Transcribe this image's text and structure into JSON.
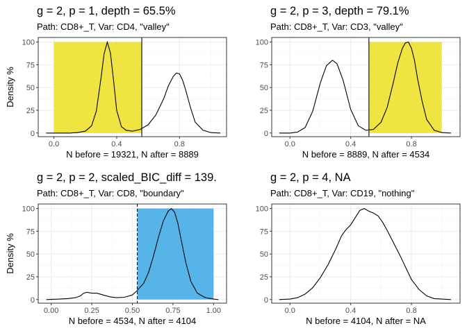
{
  "chart_data": [
    {
      "type": "line",
      "title": "g = 2, p = 1, depth = 65.5%",
      "subtitle": "Path: CD8+_T, Var: CD4, \"valley\"",
      "xlabel": "N before = 19321, N after = 8889",
      "ylabel": "Density %",
      "xlim": [
        -0.1,
        1.1
      ],
      "ylim": [
        -4,
        105
      ],
      "xticks": [
        0.0,
        0.4,
        0.8
      ],
      "xtick_labels": [
        "0.0",
        "0.4",
        "0.8"
      ],
      "yticks": [
        0,
        25,
        50,
        75,
        100
      ],
      "ytick_labels": [
        "0",
        "25",
        "50",
        "75",
        "100"
      ],
      "grid": true,
      "highlight": {
        "x0": 0.0,
        "x1": 0.56,
        "y0": 0,
        "y1": 100,
        "color": "#f0e442"
      },
      "cutoff": {
        "x": 0.56,
        "dashed": false
      },
      "series": [
        {
          "x": [
            -0.05,
            0.0,
            0.05,
            0.1,
            0.15,
            0.2,
            0.24,
            0.27,
            0.3,
            0.32,
            0.34,
            0.36,
            0.38,
            0.4,
            0.43,
            0.46,
            0.5,
            0.55,
            0.6,
            0.65,
            0.7,
            0.73,
            0.76,
            0.78,
            0.8,
            0.82,
            0.84,
            0.87,
            0.9,
            0.95,
            1.0,
            1.06
          ],
          "y": [
            0,
            0,
            0,
            0,
            0.5,
            2,
            8,
            24,
            60,
            87,
            100,
            88,
            58,
            25,
            7,
            3,
            2,
            4,
            9,
            20,
            38,
            52,
            62,
            66,
            65,
            58,
            47,
            28,
            12,
            3,
            0.5,
            0
          ]
        }
      ]
    },
    {
      "type": "line",
      "title": "g = 2, p = 3, depth = 79.1%",
      "subtitle": "Path: CD8+_T, Var: CD3, \"valley\"",
      "xlabel": "N before = 8889, N after = 4534",
      "ylabel": "",
      "xlim": [
        -0.12,
        1.12
      ],
      "ylim": [
        -4,
        105
      ],
      "xticks": [
        0.0,
        0.4,
        0.8
      ],
      "xtick_labels": [
        "0.0",
        "0.4",
        "0.8"
      ],
      "yticks": [
        0,
        25,
        50,
        75,
        100
      ],
      "ytick_labels": [
        "0",
        "25",
        "50",
        "75",
        "100"
      ],
      "grid": true,
      "highlight": {
        "x0": 0.52,
        "x1": 1.0,
        "y0": 0,
        "y1": 100,
        "color": "#f0e442"
      },
      "cutoff": {
        "x": 0.52,
        "dashed": false
      },
      "series": [
        {
          "x": [
            -0.07,
            0.0,
            0.05,
            0.1,
            0.15,
            0.2,
            0.24,
            0.28,
            0.31,
            0.35,
            0.4,
            0.45,
            0.5,
            0.55,
            0.6,
            0.64,
            0.68,
            0.71,
            0.74,
            0.76,
            0.78,
            0.8,
            0.82,
            0.84,
            0.87,
            0.9,
            0.95,
            1.0,
            1.06
          ],
          "y": [
            0,
            0,
            1,
            6,
            24,
            55,
            74,
            80,
            76,
            58,
            26,
            8,
            3,
            4,
            12,
            28,
            55,
            77,
            93,
            99,
            100,
            93,
            80,
            60,
            35,
            15,
            3,
            0.5,
            0
          ]
        }
      ]
    },
    {
      "type": "line",
      "title": "g = 2, p = 2, scaled_BIC_diff = 139.",
      "subtitle": "Path: CD8+_T, Var: CD8, \"boundary\"",
      "xlabel": "N before = 4534, N after = 4104",
      "ylabel": "Density %",
      "xlim": [
        -0.08,
        1.08
      ],
      "ylim": [
        -4,
        105
      ],
      "xticks": [
        0.0,
        0.25,
        0.5,
        0.75,
        1.0
      ],
      "xtick_labels": [
        "0.00",
        "0.25",
        "0.50",
        "0.75",
        "1.00"
      ],
      "yticks": [
        0,
        25,
        50,
        75,
        100
      ],
      "ytick_labels": [
        "0",
        "25",
        "50",
        "75",
        "100"
      ],
      "grid": true,
      "highlight": {
        "x0": 0.53,
        "x1": 1.0,
        "y0": 0,
        "y1": 100,
        "color": "#56b4e9"
      },
      "cutoff": {
        "x": 0.53,
        "dashed": true
      },
      "series": [
        {
          "x": [
            -0.03,
            0.05,
            0.1,
            0.15,
            0.18,
            0.2,
            0.22,
            0.25,
            0.28,
            0.32,
            0.36,
            0.4,
            0.45,
            0.5,
            0.53,
            0.57,
            0.6,
            0.63,
            0.66,
            0.69,
            0.72,
            0.74,
            0.76,
            0.78,
            0.8,
            0.83,
            0.86,
            0.9,
            0.95,
            1.0,
            1.03
          ],
          "y": [
            0,
            0.5,
            1,
            2,
            4,
            7,
            8,
            7,
            7,
            5,
            3,
            2,
            2.5,
            5,
            10,
            18,
            30,
            48,
            68,
            86,
            97,
            100,
            96,
            84,
            66,
            40,
            20,
            7,
            2,
            0.5,
            0
          ]
        }
      ]
    },
    {
      "type": "line",
      "title": "g = 2, p = 4, NA",
      "subtitle": "Path: CD8+_T, Var: CD19, \"nothing\"",
      "xlabel": "N before = 4104, N after = NA",
      "ylabel": "",
      "xlim": [
        -0.12,
        1.12
      ],
      "ylim": [
        -4,
        105
      ],
      "xticks": [
        0.0,
        0.4,
        0.8
      ],
      "xtick_labels": [
        "0.0",
        "0.4",
        "0.8"
      ],
      "yticks": [
        0,
        25,
        50,
        75,
        100
      ],
      "ytick_labels": [
        "0",
        "25",
        "50",
        "75",
        "100"
      ],
      "grid": true,
      "highlight": null,
      "cutoff": null,
      "series": [
        {
          "x": [
            -0.07,
            0.0,
            0.05,
            0.1,
            0.15,
            0.2,
            0.25,
            0.3,
            0.34,
            0.37,
            0.4,
            0.43,
            0.46,
            0.49,
            0.52,
            0.55,
            0.58,
            0.61,
            0.64,
            0.68,
            0.72,
            0.76,
            0.8,
            0.85,
            0.9,
            0.95,
            1.0,
            1.06
          ],
          "y": [
            0,
            0.5,
            2,
            6,
            13,
            24,
            38,
            55,
            70,
            77,
            82,
            90,
            98,
            100,
            97,
            95,
            92,
            85,
            76,
            63,
            50,
            36,
            22,
            11,
            4,
            1,
            0.5,
            0
          ]
        }
      ]
    }
  ]
}
